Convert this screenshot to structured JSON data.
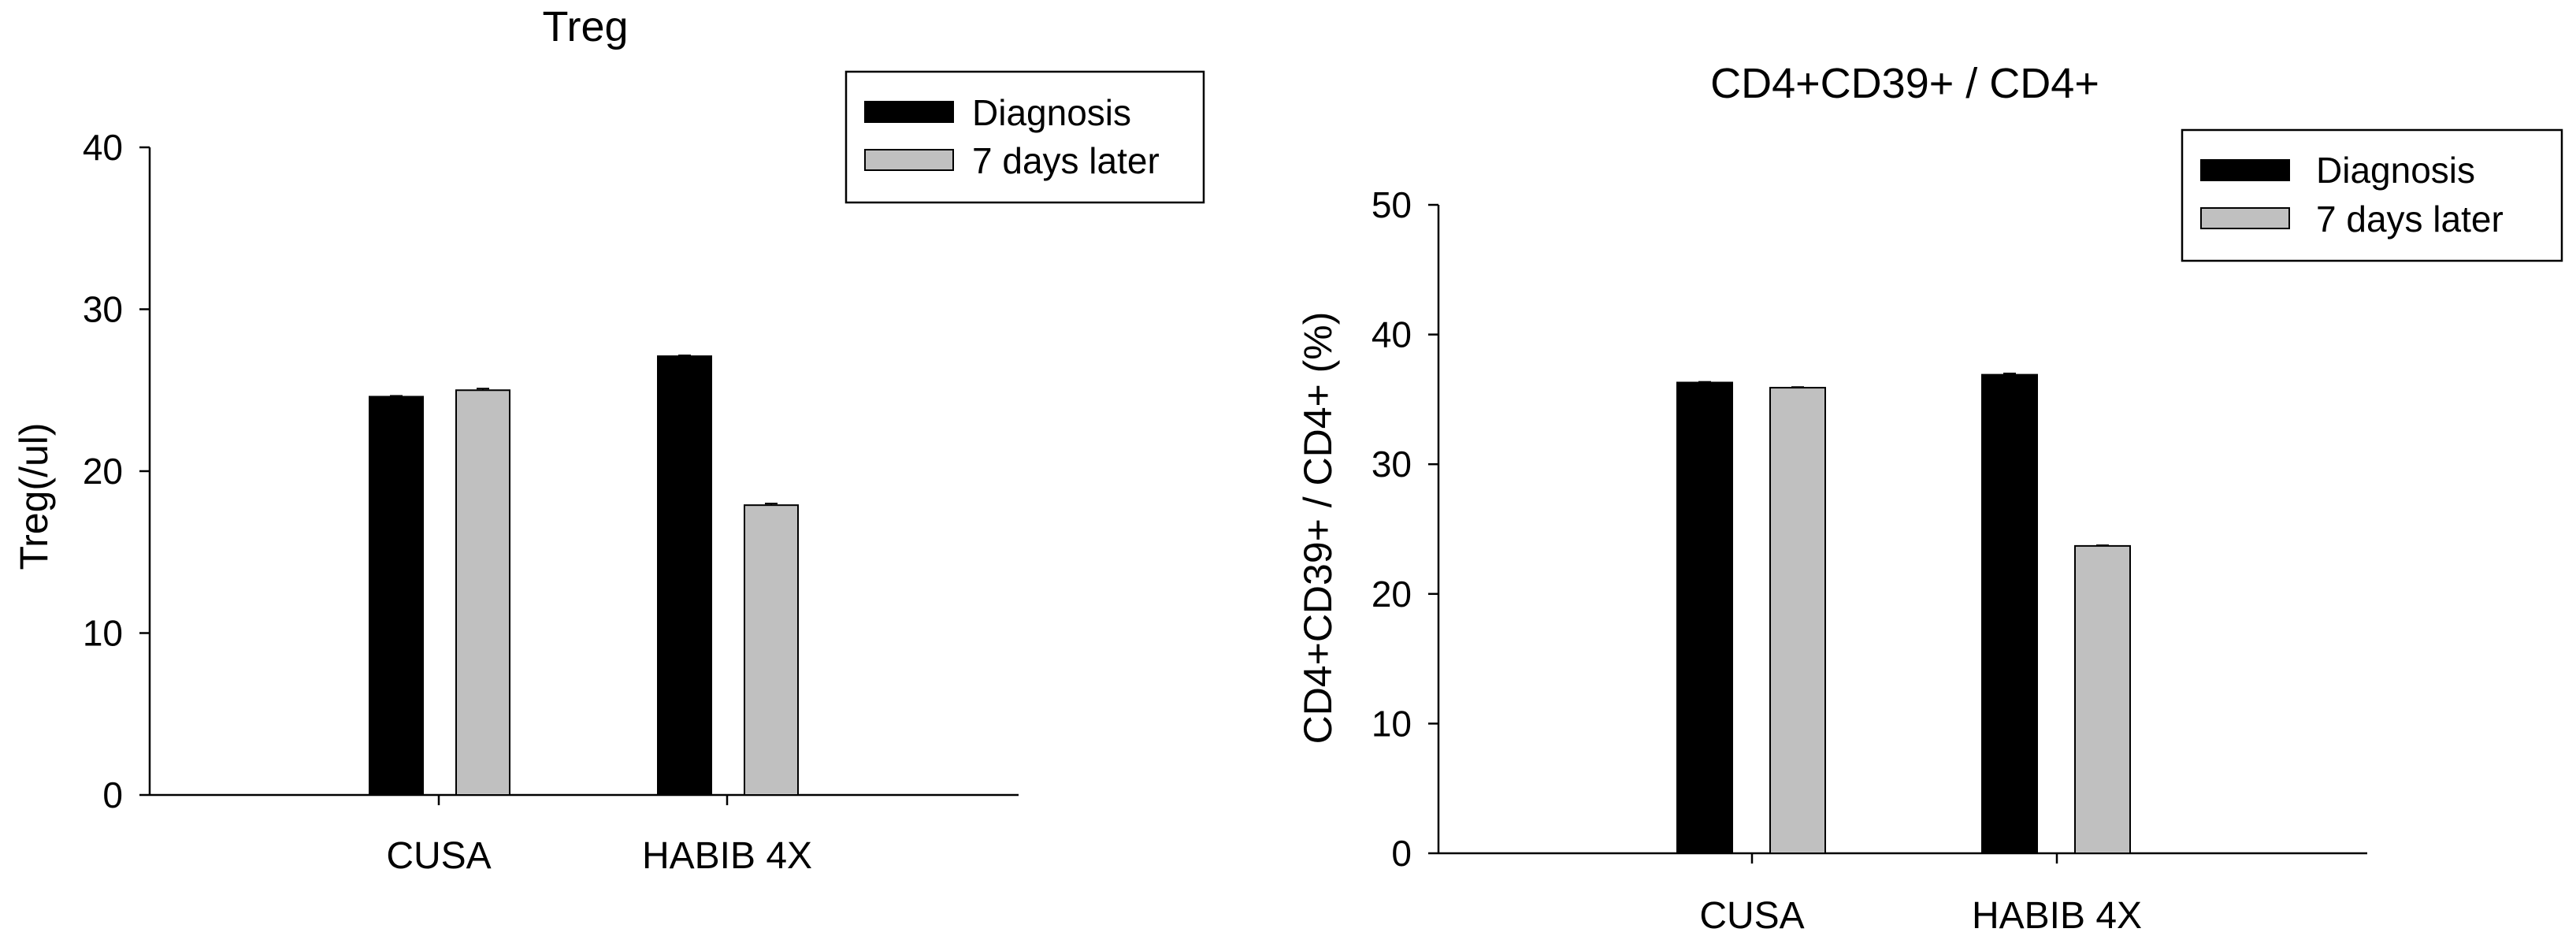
{
  "chart_data": [
    {
      "type": "bar",
      "title": "Treg",
      "xlabel": "",
      "ylabel": "Treg(/ul)",
      "ylim": [
        0,
        40
      ],
      "yticks": [
        0,
        10,
        20,
        30,
        40
      ],
      "categories": [
        "CUSA",
        "HABIB 4X"
      ],
      "series": [
        {
          "name": "Diagnosis",
          "values": [
            24.6,
            27.1
          ]
        },
        {
          "name": "7 days later",
          "values": [
            25.0,
            17.9
          ]
        }
      ],
      "error": [
        [
          0.05,
          0.05
        ],
        [
          0.1,
          0.1
        ]
      ],
      "legend_position": "top-right",
      "grid": false
    },
    {
      "type": "bar",
      "title": "CD4+CD39+ / CD4+",
      "xlabel": "",
      "ylabel": "CD4+CD39+ / CD4+ (%)",
      "ylim": [
        0,
        50
      ],
      "yticks": [
        0,
        10,
        20,
        30,
        40,
        50
      ],
      "categories": [
        "CUSA",
        "HABIB 4X"
      ],
      "series": [
        {
          "name": "Diagnosis",
          "values": [
            36.3,
            36.9
          ]
        },
        {
          "name": "7 days later",
          "values": [
            35.9,
            23.7
          ]
        }
      ],
      "error": [
        [
          0.05,
          0.1
        ],
        [
          0.05,
          0.05
        ]
      ],
      "legend_position": "top-right",
      "grid": false
    }
  ],
  "colors": {
    "series": [
      "#000000",
      "#c0c0c0"
    ],
    "axis": "#000000",
    "background": "#ffffff"
  }
}
